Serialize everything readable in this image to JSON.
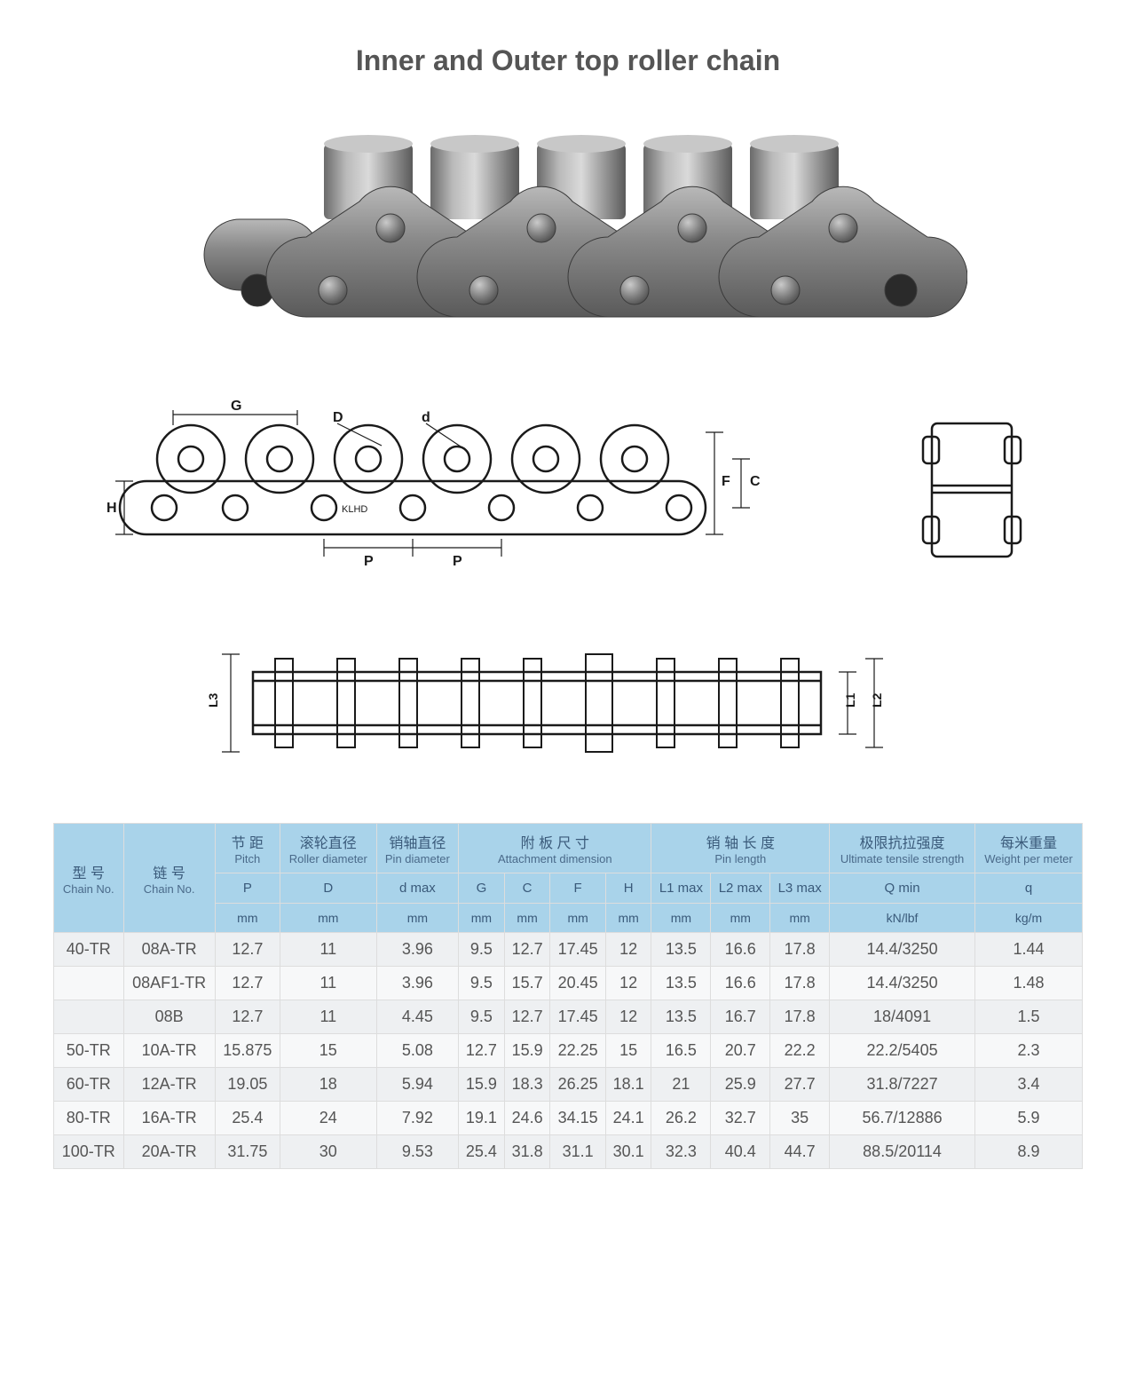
{
  "title": "Inner and Outer top roller chain",
  "diagram_labels": {
    "side": {
      "G": "G",
      "D": "D",
      "d": "d",
      "H": "H",
      "P1": "P",
      "P2": "P",
      "C": "C",
      "F": "F",
      "brand": "KLHD"
    },
    "top": {
      "L1": "L1",
      "L2": "L2",
      "L3": "L3"
    }
  },
  "table": {
    "headers": [
      {
        "cn": "型 号",
        "en": ""
      },
      {
        "cn": "链 号",
        "en": ""
      },
      {
        "cn": "节 距",
        "en": "Pitch"
      },
      {
        "cn": "滚轮直径",
        "en": "Roller diameter"
      },
      {
        "cn": "销轴直径",
        "en": "Pin diameter"
      },
      {
        "cn": "附 板 尺 寸",
        "en": "Attachment dimension"
      },
      {
        "cn": "销 轴 长 度",
        "en": "Pin length"
      },
      {
        "cn": "极限抗拉强度",
        "en": "Ultimate tensile strength"
      },
      {
        "cn": "每米重量",
        "en": "Weight per meter"
      }
    ],
    "chain_no_labels": {
      "a": "Chain No.",
      "b": "Chain No."
    },
    "sub_headers": [
      "P",
      "D",
      "d max",
      "G",
      "C",
      "F",
      "H",
      "L1 max",
      "L2 max",
      "L3 max",
      "Q min",
      "q"
    ],
    "units": [
      "mm",
      "mm",
      "mm",
      "mm",
      "mm",
      "mm",
      "mm",
      "mm",
      "mm",
      "mm",
      "kN/lbf",
      "kg/m"
    ],
    "rows": [
      [
        "40-TR",
        "08A-TR",
        "12.7",
        "11",
        "3.96",
        "9.5",
        "12.7",
        "17.45",
        "12",
        "13.5",
        "16.6",
        "17.8",
        "14.4/3250",
        "1.44"
      ],
      [
        "",
        "08AF1-TR",
        "12.7",
        "11",
        "3.96",
        "9.5",
        "15.7",
        "20.45",
        "12",
        "13.5",
        "16.6",
        "17.8",
        "14.4/3250",
        "1.48"
      ],
      [
        "",
        "08B",
        "12.7",
        "11",
        "4.45",
        "9.5",
        "12.7",
        "17.45",
        "12",
        "13.5",
        "16.7",
        "17.8",
        "18/4091",
        "1.5"
      ],
      [
        "50-TR",
        "10A-TR",
        "15.875",
        "15",
        "5.08",
        "12.7",
        "15.9",
        "22.25",
        "15",
        "16.5",
        "20.7",
        "22.2",
        "22.2/5405",
        "2.3"
      ],
      [
        "60-TR",
        "12A-TR",
        "19.05",
        "18",
        "5.94",
        "15.9",
        "18.3",
        "26.25",
        "18.1",
        "21",
        "25.9",
        "27.7",
        "31.8/7227",
        "3.4"
      ],
      [
        "80-TR",
        "16A-TR",
        "25.4",
        "24",
        "7.92",
        "19.1",
        "24.6",
        "34.15",
        "24.1",
        "26.2",
        "32.7",
        "35",
        "56.7/12886",
        "5.9"
      ],
      [
        "100-TR",
        "20A-TR",
        "31.75",
        "30",
        "9.53",
        "25.4",
        "31.8",
        "31.1",
        "30.1",
        "32.3",
        "40.4",
        "44.7",
        "88.5/20114",
        "8.9"
      ]
    ]
  },
  "colors": {
    "header_bg": "#a9d3ea",
    "header_text": "#3a5a7a",
    "row_odd": "#eef0f2",
    "row_even": "#f7f8f9",
    "border": "#dddddd",
    "title": "#555555",
    "metal_dark": "#6a6a6a",
    "metal_light": "#a8a8a8",
    "line": "#1a1a1a"
  }
}
